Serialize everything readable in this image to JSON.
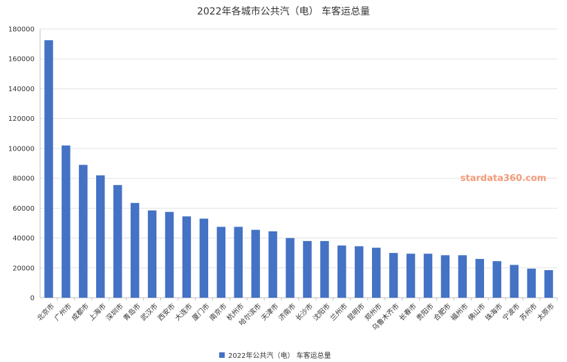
{
  "chart_data": {
    "type": "bar",
    "title": "2022年各城市公共汽（电） 车客运总量",
    "xlabel": "",
    "ylabel": "",
    "ylim": [
      0,
      180000
    ],
    "yticks": [
      0,
      20000,
      40000,
      60000,
      80000,
      100000,
      120000,
      140000,
      160000,
      180000
    ],
    "grid": true,
    "legend_position": "bottom",
    "categories": [
      "北京市",
      "广州市",
      "成都市",
      "上海市",
      "深圳市",
      "青岛市",
      "武汉市",
      "西安市",
      "大连市",
      "厦门市",
      "南京市",
      "杭州市",
      "哈尔滨市",
      "天津市",
      "济南市",
      "长沙市",
      "沈阳市",
      "兰州市",
      "昆明市",
      "郑州市",
      "乌鲁木齐市",
      "长春市",
      "贵阳市",
      "合肥市",
      "福州市",
      "佛山市",
      "珠海市",
      "宁波市",
      "苏州市",
      "太原市"
    ],
    "series": [
      {
        "name": "2022年公共汽（电） 车客运总量",
        "color": "#4472c4",
        "values": [
          172500,
          102000,
          89000,
          82000,
          75500,
          63500,
          58500,
          57500,
          54500,
          53000,
          47500,
          47500,
          45500,
          44500,
          40000,
          38000,
          38000,
          35000,
          34500,
          33500,
          30000,
          29500,
          29500,
          28500,
          28500,
          26000,
          24500,
          22000,
          19500,
          18500
        ]
      }
    ]
  },
  "watermark": "stardata360.com"
}
